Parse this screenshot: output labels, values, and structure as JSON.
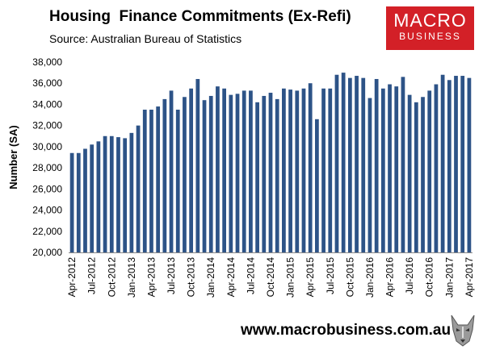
{
  "header": {
    "title": "Housing  Finance Commitments (Ex-Refi)",
    "subtitle": "Source: Australian Bureau of Statistics"
  },
  "logo": {
    "line1": "MACRO",
    "line2": "BUSINESS"
  },
  "footer": {
    "website": "www.macrobusiness.com.au",
    "mascot_icon": "wolf-icon"
  },
  "colors": {
    "bar": "#2d5387",
    "logo_bg": "#d32027"
  },
  "chart_data": {
    "type": "bar",
    "ylabel": "Number (SA)",
    "ylim": [
      20000,
      38000
    ],
    "yticks": [
      20000,
      22000,
      24000,
      26000,
      28000,
      30000,
      32000,
      34000,
      36000,
      38000
    ],
    "ytick_labels": [
      "20,000",
      "22,000",
      "24,000",
      "26,000",
      "28,000",
      "30,000",
      "32,000",
      "34,000",
      "36,000",
      "38,000"
    ],
    "grid": false,
    "x_tick_labels": [
      "Apr-2012",
      "Jul-2012",
      "Oct-2012",
      "Jan-2013",
      "Apr-2013",
      "Jul-2013",
      "Oct-2013",
      "Jan-2014",
      "Apr-2014",
      "Jul-2014",
      "Oct-2014",
      "Jan-2015",
      "Apr-2015",
      "Jul-2015",
      "Oct-2015",
      "Jan-2016",
      "Apr-2016",
      "Jul-2016",
      "Oct-2016",
      "Jan-2017",
      "Apr-2017"
    ],
    "categories": [
      "Apr-2012",
      "May-2012",
      "Jun-2012",
      "Jul-2012",
      "Aug-2012",
      "Sep-2012",
      "Oct-2012",
      "Nov-2012",
      "Dec-2012",
      "Jan-2013",
      "Feb-2013",
      "Mar-2013",
      "Apr-2013",
      "May-2013",
      "Jun-2013",
      "Jul-2013",
      "Aug-2013",
      "Sep-2013",
      "Oct-2013",
      "Nov-2013",
      "Dec-2013",
      "Jan-2014",
      "Feb-2014",
      "Mar-2014",
      "Apr-2014",
      "May-2014",
      "Jun-2014",
      "Jul-2014",
      "Aug-2014",
      "Sep-2014",
      "Oct-2014",
      "Nov-2014",
      "Dec-2014",
      "Jan-2015",
      "Feb-2015",
      "Mar-2015",
      "Apr-2015",
      "May-2015",
      "Jun-2015",
      "Jul-2015",
      "Aug-2015",
      "Sep-2015",
      "Oct-2015",
      "Nov-2015",
      "Dec-2015",
      "Jan-2016",
      "Feb-2016",
      "Mar-2016",
      "Apr-2016",
      "May-2016",
      "Jun-2016",
      "Jul-2016",
      "Aug-2016",
      "Sep-2016",
      "Oct-2016",
      "Nov-2016",
      "Dec-2016",
      "Jan-2017",
      "Feb-2017",
      "Mar-2017",
      "Apr-2017"
    ],
    "values": [
      29400,
      29400,
      29800,
      30200,
      30500,
      31000,
      31000,
      30900,
      30800,
      31300,
      32000,
      33500,
      33500,
      33800,
      34500,
      35300,
      33500,
      34700,
      35500,
      36400,
      34400,
      34800,
      35700,
      35500,
      34900,
      35000,
      35300,
      35300,
      34200,
      34800,
      35100,
      34500,
      35500,
      35400,
      35300,
      35500,
      36000,
      32600,
      35500,
      35500,
      36800,
      37000,
      36500,
      36700,
      36500,
      34600,
      36400,
      35500,
      35900,
      35700,
      36600,
      34900,
      34200,
      34700,
      35300,
      35900,
      36800,
      36300,
      36700,
      36700,
      36500
    ]
  }
}
